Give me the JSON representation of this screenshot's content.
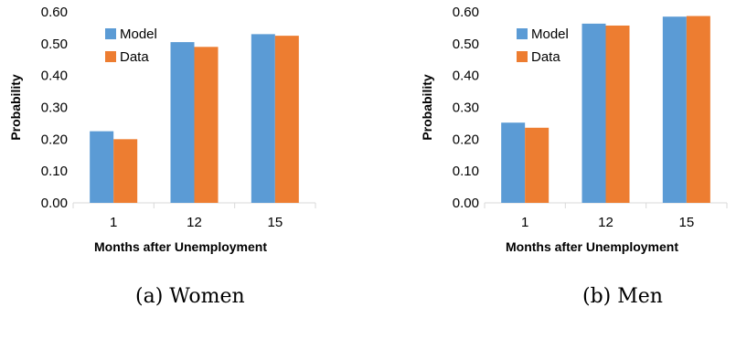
{
  "colors": {
    "model": "#5b9bd5",
    "data": "#ed7d31",
    "axis": "#d9d9d9"
  },
  "captions": {
    "a": "(a) Women",
    "b": "(b) Men"
  },
  "chart_data": [
    {
      "type": "bar",
      "categories": [
        "1",
        "12",
        "15"
      ],
      "series": [
        {
          "name": "Model",
          "values": [
            0.225,
            0.505,
            0.53
          ]
        },
        {
          "name": "Data",
          "values": [
            0.2,
            0.49,
            0.525
          ]
        }
      ],
      "xlabel": "Months after Unemployment",
      "ylabel": "Probability",
      "ylim": [
        0,
        0.6
      ],
      "yticks": [
        "0.00",
        "0.10",
        "0.20",
        "0.30",
        "0.40",
        "0.50",
        "0.60"
      ],
      "legend": "top-left",
      "grid": false
    },
    {
      "type": "bar",
      "categories": [
        "1",
        "12",
        "15"
      ],
      "series": [
        {
          "name": "Model",
          "values": [
            0.252,
            0.563,
            0.585
          ]
        },
        {
          "name": "Data",
          "values": [
            0.236,
            0.557,
            0.587
          ]
        }
      ],
      "xlabel": "Months after Unemployment",
      "ylabel": "Probability",
      "ylim": [
        0,
        0.6
      ],
      "yticks": [
        "0.00",
        "0.10",
        "0.20",
        "0.30",
        "0.40",
        "0.50",
        "0.60"
      ],
      "legend": "top-left",
      "grid": false
    }
  ]
}
